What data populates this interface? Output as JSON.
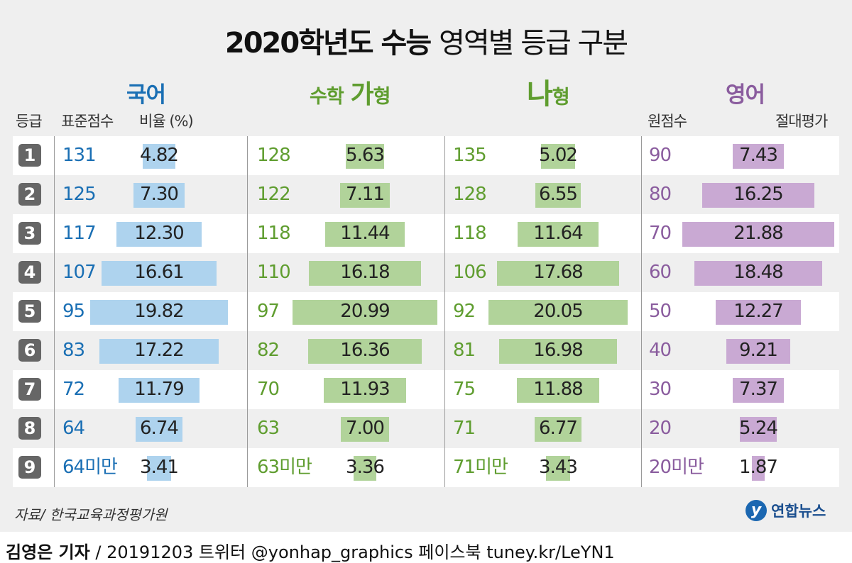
{
  "title": {
    "bold": "2020학년도 수능",
    "light": "영역별 등급 구분"
  },
  "sections": {
    "korean": {
      "label": "국어",
      "color": "#1a6fb4"
    },
    "math_ga": {
      "label_a": "수학",
      "label_b": "가",
      "label_c": "형",
      "color": "#5f9d2f"
    },
    "math_na": {
      "label_b": "나",
      "label_c": "형",
      "color": "#5f9d2f"
    },
    "english": {
      "label": "영어",
      "color": "#8a5c9e"
    }
  },
  "headers": {
    "grade": "등급",
    "std_score": "표준점수",
    "ratio": "비율 (%)",
    "raw_score": "원점수",
    "absolute": "절대평가"
  },
  "bar_colors": {
    "korean": "#aed3ee",
    "math": "#b1d39a",
    "english": "#c9a9d3"
  },
  "chart_data": {
    "type": "table",
    "title": "2020학년도 수능 영역별 등급 구분",
    "grades": [
      "1",
      "2",
      "3",
      "4",
      "5",
      "6",
      "7",
      "8",
      "9"
    ],
    "series": [
      {
        "name": "국어",
        "scores": [
          "131",
          "125",
          "117",
          "107",
          "95",
          "83",
          "72",
          "64",
          "64미만"
        ],
        "values": [
          4.82,
          7.3,
          12.3,
          16.61,
          19.82,
          17.22,
          11.79,
          6.74,
          3.41
        ],
        "labels": [
          "4.82",
          "7.30",
          "12.30",
          "16.61",
          "19.82",
          "17.22",
          "11.79",
          "6.74",
          "3.41"
        ]
      },
      {
        "name": "수학 가형",
        "scores": [
          "128",
          "122",
          "118",
          "110",
          "97",
          "82",
          "70",
          "63",
          "63미만"
        ],
        "values": [
          5.63,
          7.11,
          11.44,
          16.18,
          20.99,
          16.36,
          11.93,
          7.0,
          3.36
        ],
        "labels": [
          "5.63",
          "7.11",
          "11.44",
          "16.18",
          "20.99",
          "16.36",
          "11.93",
          "7.00",
          "3.36"
        ]
      },
      {
        "name": "수학 나형",
        "scores": [
          "135",
          "128",
          "118",
          "106",
          "92",
          "81",
          "75",
          "71",
          "71미만"
        ],
        "values": [
          5.02,
          6.55,
          11.64,
          17.68,
          20.05,
          16.98,
          11.88,
          6.77,
          3.43
        ],
        "labels": [
          "5.02",
          "6.55",
          "11.64",
          "17.68",
          "20.05",
          "16.98",
          "11.88",
          "6.77",
          "3.43"
        ]
      },
      {
        "name": "영어",
        "scores": [
          "90",
          "80",
          "70",
          "60",
          "50",
          "40",
          "30",
          "20",
          "20미만"
        ],
        "values": [
          7.43,
          16.25,
          21.88,
          18.48,
          12.27,
          9.21,
          7.37,
          5.24,
          1.87
        ],
        "labels": [
          "7.43",
          "16.25",
          "21.88",
          "18.48",
          "12.27",
          "9.21",
          "7.37",
          "5.24",
          "1.87"
        ]
      }
    ]
  },
  "source": "자료/ 한국교육과정평가원",
  "logo": {
    "mark": "y",
    "text": "연합뉴스"
  },
  "credit": {
    "name": "김영은 기자",
    "rest": " / 20191203  트위터 @yonhap_graphics  페이스북 tuney.kr/LeYN1"
  }
}
